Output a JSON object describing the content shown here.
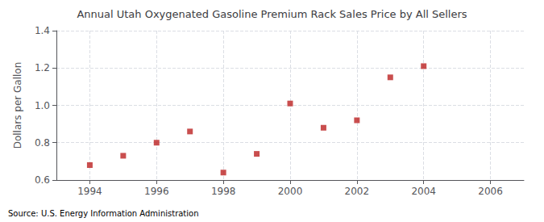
{
  "chart_data": {
    "type": "scatter",
    "title": "Annual Utah Oxygenated Gasoline Premium Rack Sales Price by All Sellers",
    "ylabel": "Dollars per Gallon",
    "annotations": [
      "Source: U.S. Energy Information Administration"
    ],
    "x": [
      1994,
      1995,
      1996,
      1997,
      1998,
      1999,
      2000,
      2001,
      2002,
      2003,
      2004
    ],
    "values": [
      0.68,
      0.73,
      0.8,
      0.86,
      0.64,
      0.74,
      1.01,
      0.88,
      0.92,
      1.15,
      1.21
    ],
    "color": "#bb2222",
    "marker": "square",
    "xlim": [
      1993,
      2007
    ],
    "ylim": [
      0.6,
      1.4
    ],
    "xticks": [
      1994,
      1996,
      1998,
      2000,
      2002,
      2004,
      2006
    ],
    "yticks": [
      0.6,
      0.8,
      {
        "value": 1.0,
        "label": "1.0"
      },
      1.2,
      1.4
    ],
    "grid": true
  }
}
